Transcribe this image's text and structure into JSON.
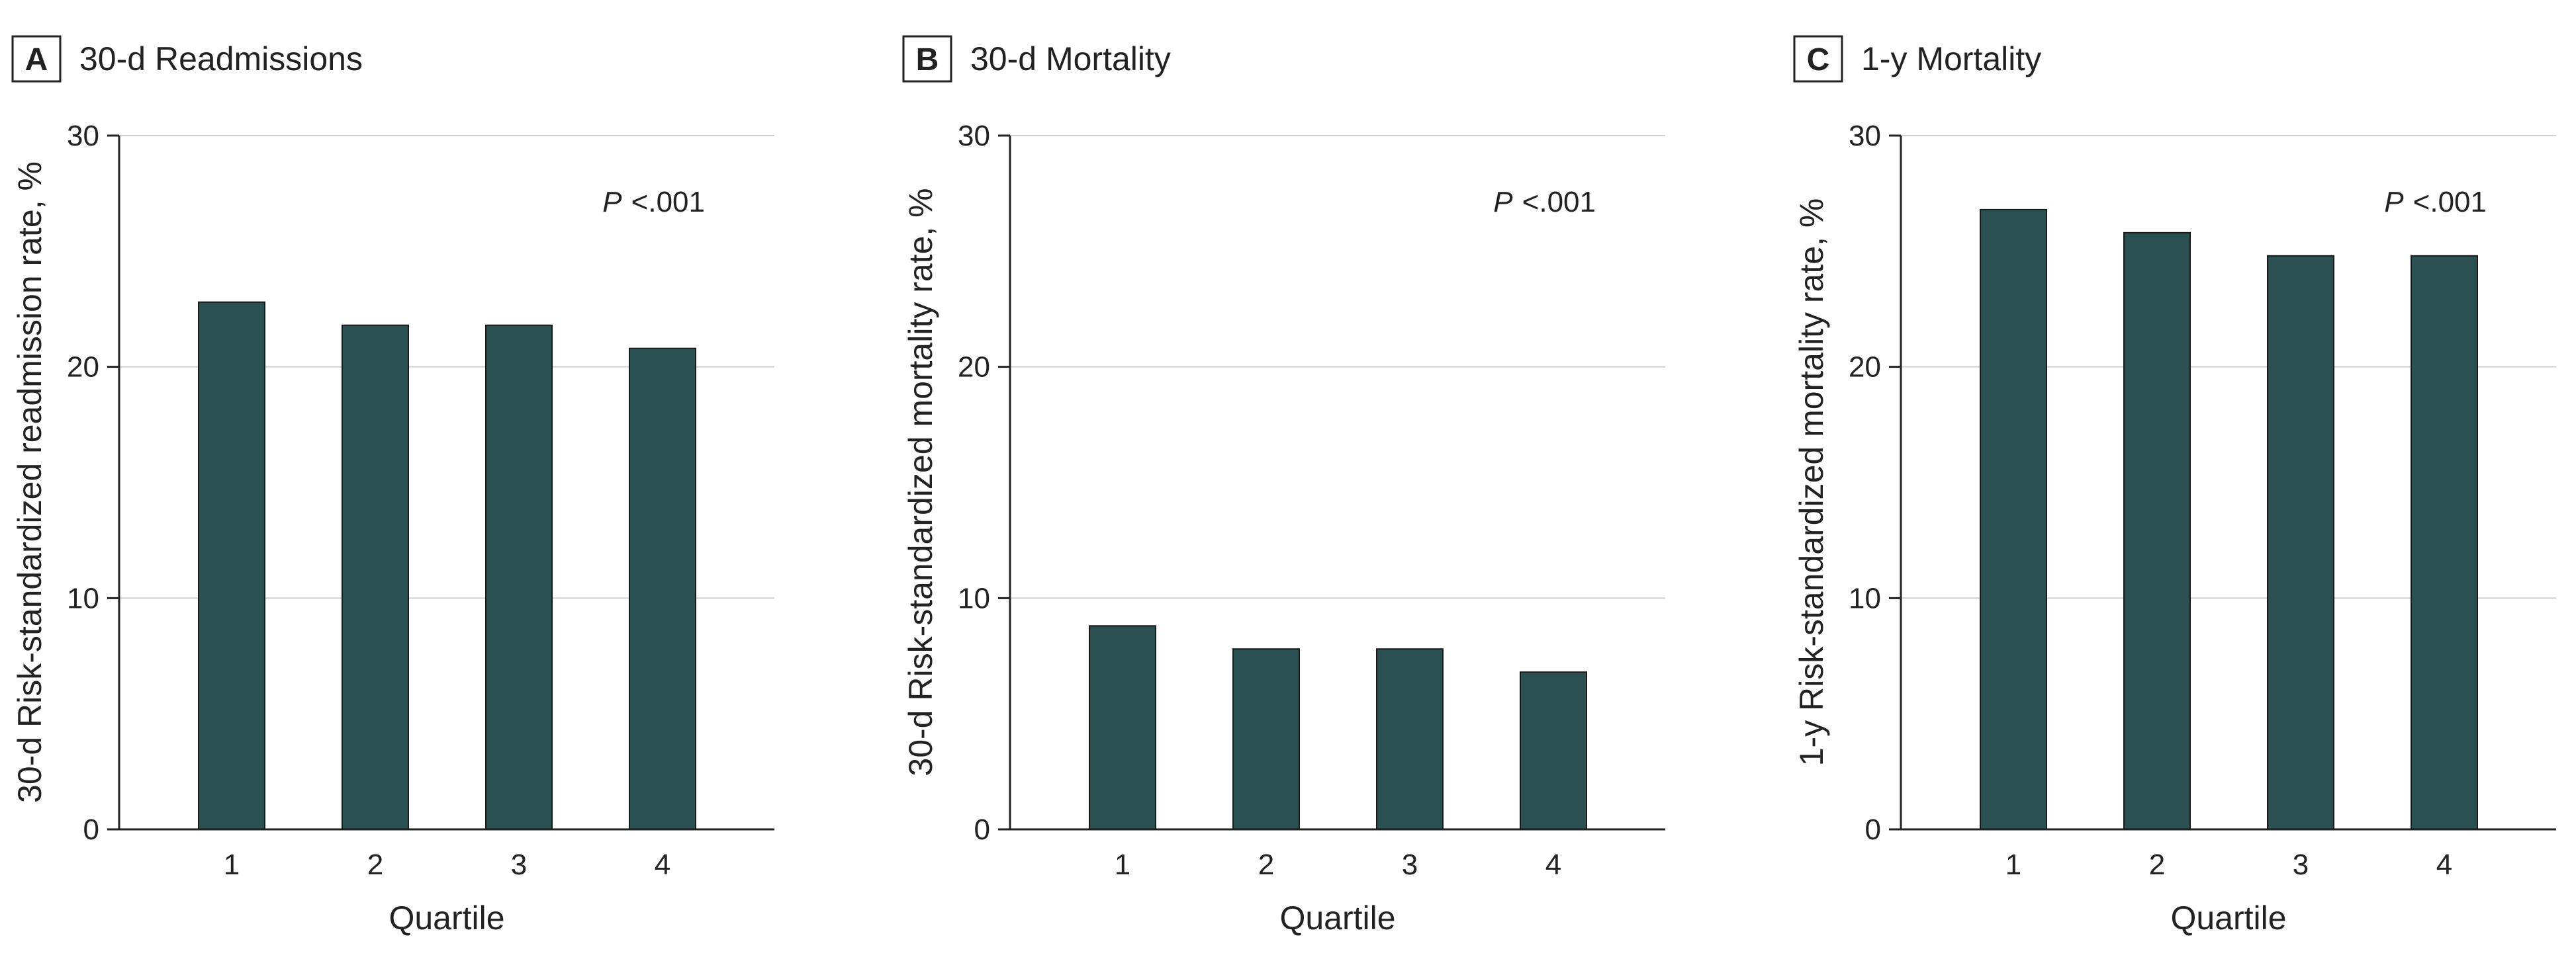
{
  "chart_data": [
    {
      "type": "bar",
      "panel_letter": "A",
      "title": "30-d Readmissions",
      "xlabel": "Quartile",
      "ylabel": "30-d Risk-standardized readmission rate, %",
      "categories": [
        "1",
        "2",
        "3",
        "4"
      ],
      "values": [
        22.8,
        21.8,
        21.8,
        20.8
      ],
      "ylim": [
        0,
        30
      ],
      "yticks": [
        "0",
        "10",
        "20",
        "30"
      ],
      "annotation_p": "P",
      "annotation_value": "<.001",
      "grid": true,
      "bar_color": "#2b5052"
    },
    {
      "type": "bar",
      "panel_letter": "B",
      "title": "30-d Mortality",
      "xlabel": "Quartile",
      "ylabel": "30-d Risk-standardized mortality rate, %",
      "categories": [
        "1",
        "2",
        "3",
        "4"
      ],
      "values": [
        8.8,
        7.8,
        7.8,
        6.8
      ],
      "ylim": [
        0,
        30
      ],
      "yticks": [
        "0",
        "10",
        "20",
        "30"
      ],
      "annotation_p": "P",
      "annotation_value": "<.001",
      "grid": true,
      "bar_color": "#2b5052"
    },
    {
      "type": "bar",
      "panel_letter": "C",
      "title": "1-y Mortality",
      "xlabel": "Quartile",
      "ylabel": "1-y Risk-standardized mortality rate, %",
      "categories": [
        "1",
        "2",
        "3",
        "4"
      ],
      "values": [
        26.8,
        25.8,
        24.8,
        24.8
      ],
      "ylim": [
        0,
        30
      ],
      "yticks": [
        "0",
        "10",
        "20",
        "30"
      ],
      "annotation_p": "P",
      "annotation_value": "<.001",
      "grid": true,
      "bar_color": "#2b5052"
    }
  ]
}
